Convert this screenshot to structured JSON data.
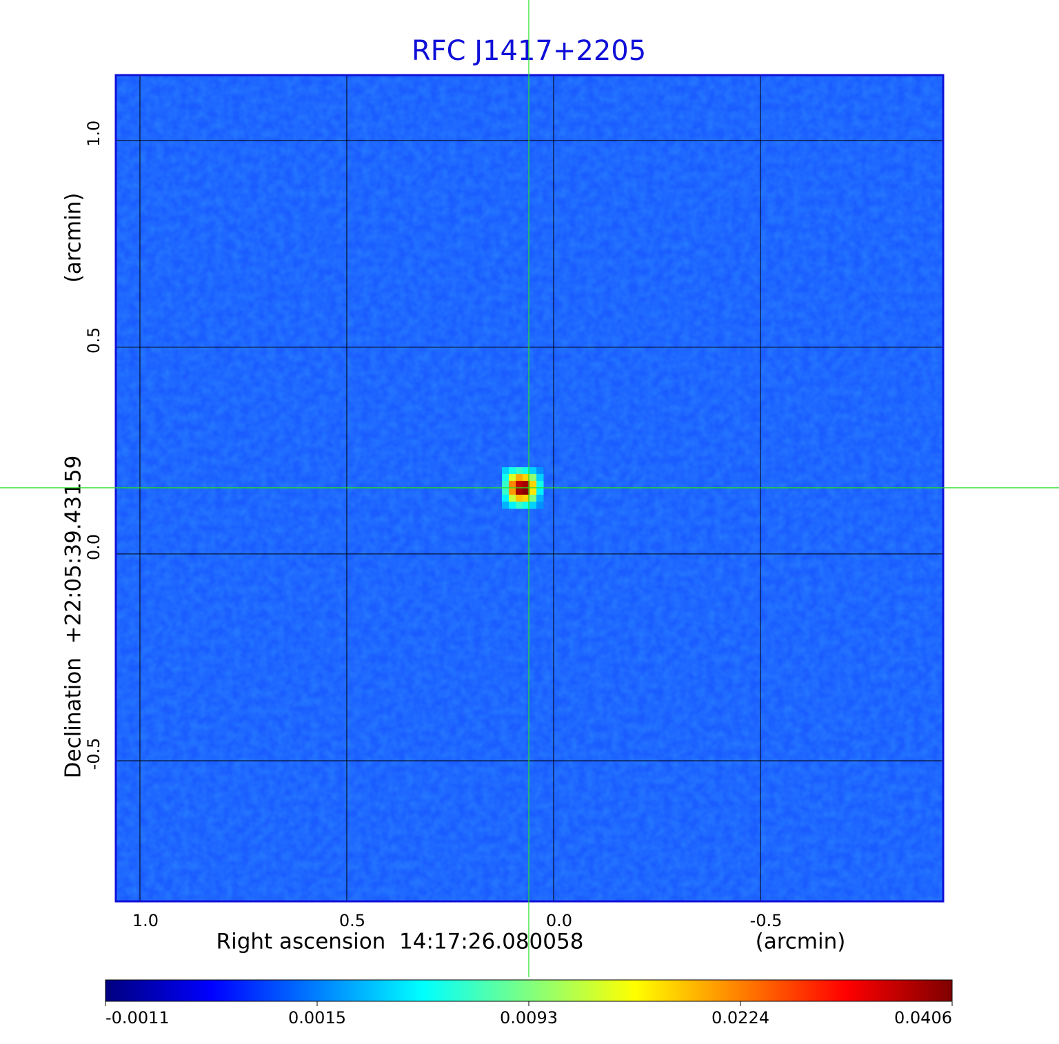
{
  "chart_data": {
    "type": "image",
    "title": "RFC J1417+2205",
    "title_color": "#1010d8",
    "x_label": "Right ascension  14:17:26.080058",
    "x_unit": "(arcmin)",
    "y_label": "Declination  +22:05:39.43159",
    "y_unit": "(arcmin)",
    "xlim": [
      1.0583,
      -0.9417
    ],
    "ylim": [
      -0.84,
      1.158
    ],
    "xticks": [
      {
        "value": 1.0,
        "label": "1.0"
      },
      0.5,
      {
        "value": 0.0,
        "label": "0.0"
      },
      -0.5
    ],
    "yticks": [
      {
        "value": 1.0,
        "label": "1.0"
      },
      0.5,
      {
        "value": 0.0,
        "label": "0.0"
      },
      -0.5
    ],
    "grid": true,
    "clim": [
      -0.0011,
      0.0406
    ],
    "cticks": [
      -0.0011,
      0.0015,
      0.0093,
      0.0224,
      0.0406
    ],
    "colormap": "jet",
    "crosshair": {
      "x": 0.06,
      "y": 0.16,
      "color": "#22e022"
    },
    "source": {
      "xlim": [
        0.125,
        0.025
      ],
      "ylim": [
        0.21,
        0.11
      ],
      "values": [
        [
          0.004,
          0.006,
          0.007,
          0.006,
          0.004,
          0.002
        ],
        [
          0.006,
          0.014,
          0.02,
          0.018,
          0.01,
          0.004
        ],
        [
          0.007,
          0.022,
          0.036,
          0.038,
          0.018,
          0.006
        ],
        [
          0.007,
          0.021,
          0.038,
          0.04,
          0.017,
          0.005
        ],
        [
          0.005,
          0.013,
          0.019,
          0.018,
          0.009,
          0.003
        ],
        [
          0.003,
          0.005,
          0.007,
          0.006,
          0.004,
          0.002
        ]
      ]
    }
  }
}
